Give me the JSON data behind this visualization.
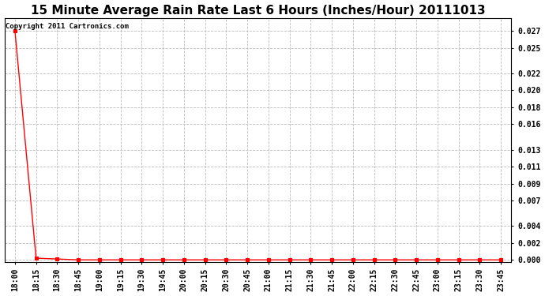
{
  "title": "15 Minute Average Rain Rate Last 6 Hours (Inches/Hour) 20111013",
  "copyright_text": "Copyright 2011 Cartronics.com",
  "x_labels": [
    "18:00",
    "18:15",
    "18:30",
    "18:45",
    "19:00",
    "19:15",
    "19:30",
    "19:45",
    "20:00",
    "20:15",
    "20:30",
    "20:45",
    "21:00",
    "21:15",
    "21:30",
    "21:45",
    "22:00",
    "22:15",
    "22:30",
    "22:45",
    "23:00",
    "23:15",
    "23:30",
    "23:45"
  ],
  "y_values": [
    0.027,
    0.0002,
    0.0001,
    0.0,
    0.0,
    0.0,
    0.0,
    0.0,
    0.0,
    0.0,
    0.0,
    0.0,
    0.0,
    0.0,
    0.0,
    0.0,
    0.0,
    0.0,
    0.0,
    0.0,
    0.0,
    0.0,
    0.0,
    0.0
  ],
  "line_color": "#ff0000",
  "marker": "s",
  "marker_size": 3,
  "marker_color": "#ff0000",
  "background_color": "#ffffff",
  "grid_color": "#bbbbbb",
  "yticks": [
    0.0,
    0.002,
    0.004,
    0.007,
    0.009,
    0.011,
    0.013,
    0.016,
    0.018,
    0.02,
    0.022,
    0.025,
    0.027
  ],
  "ylim": [
    -0.0003,
    0.0285
  ],
  "title_fontsize": 11,
  "tick_fontsize": 7,
  "copyright_fontsize": 6.5
}
